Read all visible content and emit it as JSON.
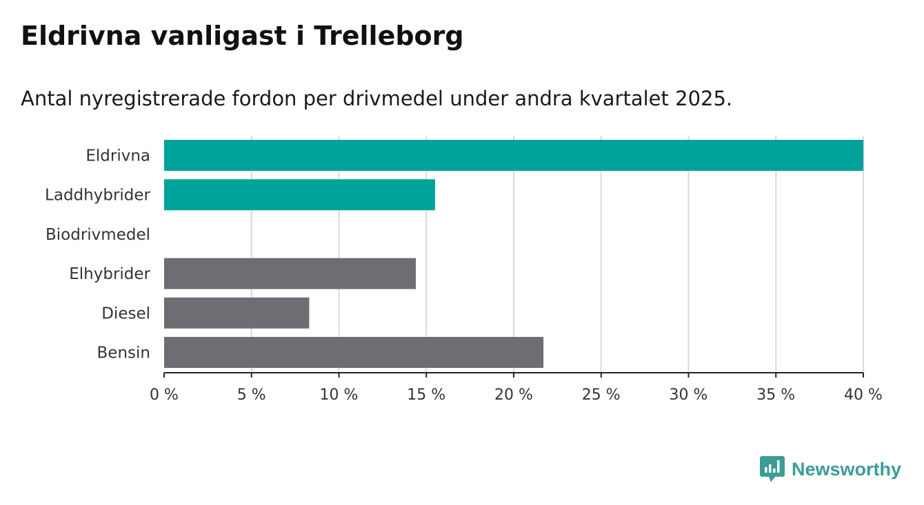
{
  "header": {
    "title": "Eldrivna vanligast i Trelleborg",
    "subtitle": "Antal nyregistrerade fordon per drivmedel under andra kvartalet 2025."
  },
  "brand": {
    "name": "Newsworthy",
    "color": "#3b9c98",
    "icon": "bar-chart-speech-bubble-icon"
  },
  "colors": {
    "highlight": "#00a39a",
    "default": "#6e6d73",
    "grid": "#d9d9d9",
    "axis": "#222222"
  },
  "chart_data": {
    "type": "bar",
    "orientation": "horizontal",
    "categories": [
      "Eldrivna",
      "Laddhybrider",
      "Biodrivmedel",
      "Elhybrider",
      "Diesel",
      "Bensin"
    ],
    "values": [
      40.0,
      15.5,
      0,
      14.4,
      8.3,
      21.7
    ],
    "highlight": [
      true,
      true,
      true,
      false,
      false,
      false
    ],
    "xlim": [
      0,
      40
    ],
    "x_ticks": [
      0,
      5,
      10,
      15,
      20,
      25,
      30,
      35,
      40
    ],
    "x_tick_labels": [
      "0 %",
      "5 %",
      "10 %",
      "15 %",
      "20 %",
      "25 %",
      "30 %",
      "35 %",
      "40 %"
    ],
    "unit": "%",
    "grid": "vertical",
    "legend": "none"
  }
}
